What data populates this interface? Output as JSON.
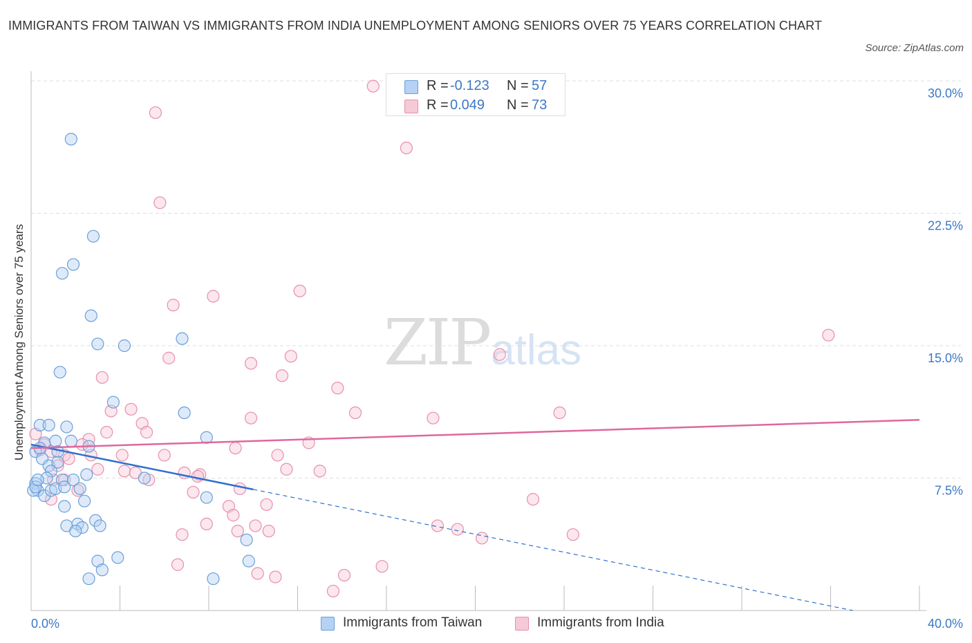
{
  "title": "IMMIGRANTS FROM TAIWAN VS IMMIGRANTS FROM INDIA UNEMPLOYMENT AMONG SENIORS OVER 75 YEARS CORRELATION CHART",
  "source": "Source: ZipAtlas.com",
  "watermark": {
    "zip": "ZIP",
    "atlas": "atlas"
  },
  "colors": {
    "taiwan": "#6a9fd8",
    "taiwan_fill": "#b5d1f3",
    "taiwan_line": "#2f6fcf",
    "india": "#e78fab",
    "india_fill": "#f6c9d7",
    "india_line": "#e0679a",
    "tick": "#3b78c4",
    "grid": "#dddddd"
  },
  "legend_top": [
    {
      "r_label": "R =",
      "r_value": "-0.123",
      "n_label": "N =",
      "n_value": "57"
    },
    {
      "r_label": "R =",
      "r_value": "0.049",
      "n_label": "N =",
      "n_value": "73"
    }
  ],
  "legend_bottom": [
    {
      "label": "Immigrants from Taiwan"
    },
    {
      "label": "Immigrants from India"
    }
  ],
  "chart_data": {
    "type": "scatter",
    "title": "IMMIGRANTS FROM TAIWAN VS IMMIGRANTS FROM INDIA UNEMPLOYMENT AMONG SENIORS OVER 75 YEARS CORRELATION CHART",
    "xlabel": "",
    "ylabel": "Unemployment Among Seniors over 75 years",
    "xlim": [
      0,
      40
    ],
    "ylim": [
      0,
      30
    ],
    "x_tick_labels": [
      "0.0%",
      "40.0%"
    ],
    "y_ticks": [
      7.5,
      15,
      22.5,
      30
    ],
    "y_tick_labels": [
      "7.5%",
      "15.0%",
      "22.5%",
      "30.0%"
    ],
    "grid": true,
    "series": [
      {
        "name": "Immigrants from Taiwan",
        "R": -0.123,
        "N": 57,
        "trend": {
          "x0": 0,
          "y0": 9.4,
          "x_solid_end": 10,
          "x1": 37,
          "y1": 0
        },
        "points": [
          [
            1.8,
            26.7
          ],
          [
            2.8,
            21.2
          ],
          [
            1.4,
            19.1
          ],
          [
            1.9,
            19.6
          ],
          [
            2.7,
            16.7
          ],
          [
            3.0,
            15.1
          ],
          [
            4.2,
            15.0
          ],
          [
            6.8,
            15.4
          ],
          [
            1.3,
            13.5
          ],
          [
            3.7,
            11.8
          ],
          [
            6.9,
            11.2
          ],
          [
            0.4,
            10.5
          ],
          [
            1.6,
            10.4
          ],
          [
            0.8,
            10.5
          ],
          [
            0.6,
            9.5
          ],
          [
            1.1,
            9.6
          ],
          [
            1.8,
            9.6
          ],
          [
            2.6,
            9.3
          ],
          [
            7.9,
            9.8
          ],
          [
            0.2,
            9.0
          ],
          [
            0.5,
            8.6
          ],
          [
            1.2,
            9.0
          ],
          [
            0.8,
            8.2
          ],
          [
            0.9,
            7.9
          ],
          [
            0.7,
            7.5
          ],
          [
            1.4,
            7.4
          ],
          [
            1.9,
            7.4
          ],
          [
            2.5,
            7.7
          ],
          [
            5.1,
            7.5
          ],
          [
            0.2,
            7.2
          ],
          [
            0.3,
            6.8
          ],
          [
            0.6,
            6.5
          ],
          [
            0.9,
            6.8
          ],
          [
            1.1,
            6.9
          ],
          [
            1.5,
            7.0
          ],
          [
            2.4,
            6.2
          ],
          [
            7.9,
            6.4
          ],
          [
            0.1,
            6.8
          ],
          [
            1.5,
            5.9
          ],
          [
            1.6,
            4.8
          ],
          [
            2.1,
            4.9
          ],
          [
            2.3,
            4.7
          ],
          [
            2.9,
            5.1
          ],
          [
            3.1,
            4.8
          ],
          [
            2.0,
            4.5
          ],
          [
            9.7,
            4.0
          ],
          [
            3.0,
            2.8
          ],
          [
            3.9,
            3.0
          ],
          [
            9.8,
            2.8
          ],
          [
            2.6,
            1.8
          ],
          [
            3.2,
            2.3
          ],
          [
            8.2,
            1.8
          ],
          [
            0.2,
            7.0
          ],
          [
            0.3,
            7.4
          ],
          [
            1.2,
            8.4
          ],
          [
            0.4,
            9.2
          ],
          [
            2.2,
            6.9
          ]
        ]
      },
      {
        "name": "Immigrants from India",
        "R": 0.049,
        "N": 73,
        "trend": {
          "x0": 0,
          "y0": 9.2,
          "x1": 40,
          "y1": 10.8
        },
        "points": [
          [
            15.4,
            29.7
          ],
          [
            5.6,
            28.2
          ],
          [
            16.9,
            26.2
          ],
          [
            5.8,
            23.1
          ],
          [
            12.1,
            18.1
          ],
          [
            6.4,
            17.3
          ],
          [
            8.2,
            17.8
          ],
          [
            35.9,
            15.6
          ],
          [
            6.2,
            14.3
          ],
          [
            9.9,
            14.0
          ],
          [
            11.7,
            14.4
          ],
          [
            21.1,
            14.5
          ],
          [
            3.2,
            13.2
          ],
          [
            11.3,
            13.3
          ],
          [
            13.8,
            12.6
          ],
          [
            4.5,
            11.4
          ],
          [
            3.6,
            11.3
          ],
          [
            14.6,
            11.2
          ],
          [
            23.8,
            11.2
          ],
          [
            9.9,
            10.9
          ],
          [
            18.1,
            10.9
          ],
          [
            5.0,
            10.6
          ],
          [
            5.2,
            10.1
          ],
          [
            3.4,
            10.1
          ],
          [
            0.2,
            10.0
          ],
          [
            2.6,
            9.7
          ],
          [
            0.6,
            9.4
          ],
          [
            2.3,
            9.4
          ],
          [
            12.5,
            9.5
          ],
          [
            9.2,
            9.2
          ],
          [
            0.4,
            9.1
          ],
          [
            0.9,
            9.0
          ],
          [
            1.5,
            8.8
          ],
          [
            1.7,
            8.6
          ],
          [
            2.7,
            8.8
          ],
          [
            4.1,
            8.8
          ],
          [
            6.0,
            8.8
          ],
          [
            11.1,
            8.8
          ],
          [
            1.2,
            8.2
          ],
          [
            3.0,
            8.0
          ],
          [
            4.2,
            7.9
          ],
          [
            4.7,
            7.8
          ],
          [
            6.9,
            7.8
          ],
          [
            7.6,
            7.7
          ],
          [
            11.5,
            8.0
          ],
          [
            13.0,
            7.9
          ],
          [
            1.0,
            7.4
          ],
          [
            1.5,
            7.4
          ],
          [
            5.3,
            7.4
          ],
          [
            7.5,
            7.6
          ],
          [
            2.1,
            6.8
          ],
          [
            7.3,
            6.7
          ],
          [
            9.4,
            6.9
          ],
          [
            0.9,
            6.3
          ],
          [
            22.6,
            6.3
          ],
          [
            8.9,
            5.9
          ],
          [
            9.1,
            5.4
          ],
          [
            10.6,
            6.0
          ],
          [
            7.9,
            4.9
          ],
          [
            9.3,
            4.5
          ],
          [
            10.1,
            4.8
          ],
          [
            10.7,
            4.5
          ],
          [
            18.3,
            4.8
          ],
          [
            19.2,
            4.6
          ],
          [
            20.3,
            4.1
          ],
          [
            24.4,
            4.3
          ],
          [
            6.8,
            4.3
          ],
          [
            6.6,
            2.6
          ],
          [
            10.2,
            2.1
          ],
          [
            11.0,
            1.9
          ],
          [
            14.1,
            2.0
          ],
          [
            15.8,
            2.5
          ],
          [
            13.6,
            1.1
          ]
        ]
      }
    ]
  }
}
